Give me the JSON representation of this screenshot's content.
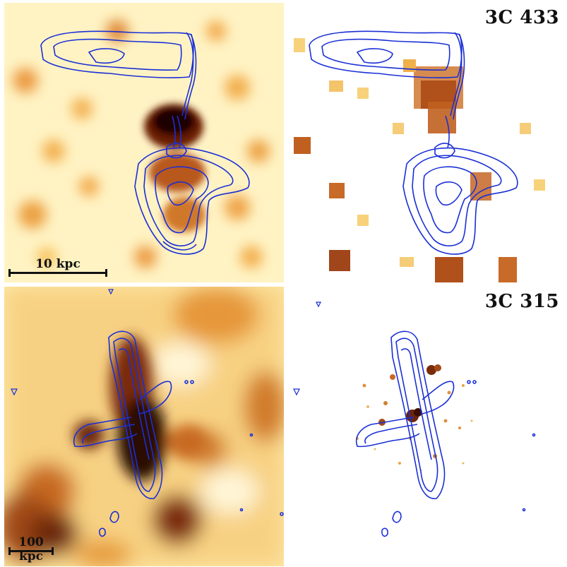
{
  "figure": {
    "rows": [
      {
        "source_label": "3C 433",
        "scale_bar_label": "10 kpc"
      },
      {
        "source_label": "3C 315",
        "scale_bar_label": "100 kpc"
      }
    ]
  },
  "colors": {
    "contour": "#1a2fd6",
    "emission_dark": "#3a0d00",
    "emission_mid": "#c2601a",
    "emission_light": "#f2c15a",
    "background_smooth": "#fff6cf",
    "background_raw": "#ffffff"
  }
}
